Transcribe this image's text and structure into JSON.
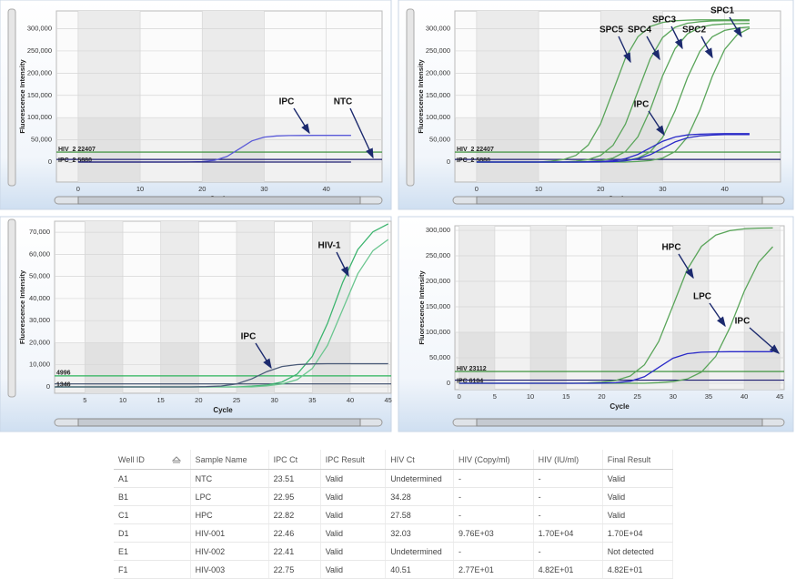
{
  "chart_data": [
    {
      "type": "line",
      "xlabel": "Cycle",
      "ylabel": "Fluorescence Intensity",
      "x": [
        0,
        2,
        4,
        6,
        8,
        10,
        12,
        14,
        16,
        18,
        20,
        22,
        24,
        26,
        28,
        30,
        32,
        34,
        36,
        38,
        40,
        42,
        44
      ],
      "xlim": [
        -3.5,
        49
      ],
      "ylim": [
        -45000,
        340000
      ],
      "xticks": [
        0,
        10,
        20,
        30,
        40
      ],
      "yticks": [
        0,
        {
          "value": 50000,
          "label": "50,000"
        },
        {
          "value": 100000,
          "label": "100,000"
        },
        {
          "value": 150000,
          "label": "150,000"
        },
        {
          "value": 200000,
          "label": "200,000"
        },
        {
          "value": 250000,
          "label": "250,000"
        },
        {
          "value": 300000,
          "label": "300,000"
        }
      ],
      "series": [
        {
          "color": "#5a5ad8",
          "values": [
            0,
            0,
            0,
            0,
            0,
            0,
            0,
            0,
            0,
            300,
            1100,
            3900,
            12500,
            30000,
            47500,
            56100,
            58900,
            59600,
            59900,
            60000,
            60000,
            60000,
            60000
          ]
        },
        {
          "color": "#1c1c70",
          "values": [
            0,
            0,
            0,
            0,
            0,
            0,
            0,
            0,
            0,
            0,
            0,
            0,
            0,
            0,
            0,
            0,
            0,
            0,
            0,
            0,
            0,
            0,
            0
          ]
        }
      ],
      "thresholds": [
        {
          "label": "HIV_2 22407",
          "value": 22407,
          "color": "#2c8a2c"
        },
        {
          "label": "IPC_2 5880",
          "value": 5880,
          "color": "#1c1c70"
        }
      ],
      "annotations": [
        {
          "text": "IPC"
        },
        {
          "text": "NTC"
        }
      ]
    },
    {
      "type": "line",
      "xlabel": "Cycle",
      "ylabel": "Fluorescence Intensity",
      "x": [
        0,
        2,
        4,
        6,
        8,
        10,
        12,
        14,
        16,
        18,
        20,
        22,
        24,
        26,
        28,
        30,
        32,
        34,
        36,
        38,
        40,
        42,
        44
      ],
      "xlim": [
        -3.5,
        49
      ],
      "ylim": [
        -45000,
        340000
      ],
      "xticks": [
        0,
        10,
        20,
        30,
        40
      ],
      "yticks": [
        0,
        {
          "value": 50000,
          "label": "50,000"
        },
        {
          "value": 100000,
          "label": "100,000"
        },
        {
          "value": 150000,
          "label": "150,000"
        },
        {
          "value": 200000,
          "label": "200,000"
        },
        {
          "value": 250000,
          "label": "250,000"
        },
        {
          "value": 300000,
          "label": "300,000"
        }
      ],
      "series": [
        {
          "color": "#5aa55a",
          "values": [
            0,
            0,
            0,
            0,
            0,
            0,
            2200,
            5800,
            15000,
            38100,
            86100,
            160000,
            233900,
            281900,
            305000,
            314200,
            317800,
            319400,
            320000,
            320000,
            320000,
            320000,
            320000
          ]
        },
        {
          "color": "#5aa55a",
          "values": [
            0,
            0,
            0,
            0,
            0,
            0,
            0,
            0,
            2200,
            5700,
            14900,
            37800,
            85500,
            159000,
            232500,
            280200,
            303100,
            312300,
            315800,
            317400,
            318000,
            318000,
            318000
          ]
        },
        {
          "color": "#5aa55a",
          "values": [
            0,
            0,
            0,
            0,
            0,
            0,
            0,
            0,
            0,
            1200,
            3400,
            9000,
            23700,
            56800,
            117900,
            194100,
            255200,
            288300,
            303000,
            308600,
            310800,
            311400,
            312000
          ]
        },
        {
          "color": "#5aa55a",
          "values": [
            0,
            0,
            0,
            0,
            0,
            0,
            0,
            0,
            0,
            0,
            0,
            1200,
            3400,
            8800,
            23200,
            55500,
            115300,
            189700,
            249500,
            281800,
            296200,
            301600,
            303800
          ]
        },
        {
          "color": "#5aa55a",
          "values": [
            0,
            0,
            0,
            0,
            0,
            0,
            0,
            0,
            0,
            0,
            0,
            0,
            0,
            1200,
            3400,
            9000,
            23600,
            56400,
            117200,
            192800,
            253600,
            286400,
            301000
          ]
        },
        {
          "color": "#2a2ac8",
          "values": [
            0,
            0,
            0,
            0,
            0,
            0,
            0,
            0,
            0,
            400,
            1200,
            3000,
            7600,
            17200,
            32000,
            46800,
            56400,
            61000,
            62800,
            63600,
            63900,
            64000,
            64000
          ]
        },
        {
          "color": "#2a2ac8",
          "values": [
            0,
            0,
            0,
            0,
            0,
            0,
            0,
            0,
            0,
            0,
            400,
            1100,
            2900,
            7400,
            16700,
            31000,
            45300,
            54600,
            59100,
            60900,
            61600,
            61900,
            62000
          ]
        }
      ],
      "thresholds": [
        {
          "label": "HIV_2 22407",
          "value": 22407,
          "color": "#2c8a2c"
        },
        {
          "label": "IPC_2 5880",
          "value": 5880,
          "color": "#1c1c70"
        }
      ],
      "annotations": [
        {
          "text": "SPC5"
        },
        {
          "text": "SPC4"
        },
        {
          "text": "SPC3"
        },
        {
          "text": "SPC2"
        },
        {
          "text": "SPC1"
        },
        {
          "text": "IPC"
        }
      ]
    },
    {
      "type": "line",
      "xlabel": "Cycle",
      "ylabel": "Fluorescence Intensity",
      "x": [
        1,
        3,
        5,
        7,
        9,
        11,
        13,
        15,
        17,
        19,
        21,
        23,
        25,
        27,
        29,
        31,
        33,
        35,
        37,
        39,
        41,
        43,
        45
      ],
      "xlim": [
        1,
        45.4
      ],
      "ylim": [
        -2900,
        75000
      ],
      "xticks": [
        5,
        10,
        15,
        20,
        25,
        30,
        35,
        40,
        45
      ],
      "yticks": [
        0,
        {
          "value": 10000,
          "label": "10,000"
        },
        {
          "value": 20000,
          "label": "20,000"
        },
        {
          "value": 30000,
          "label": "30,000"
        },
        {
          "value": 40000,
          "label": "40,000"
        },
        {
          "value": 50000,
          "label": "50,000"
        },
        {
          "value": 60000,
          "label": "60,000"
        },
        {
          "value": 70000,
          "label": "70,000"
        }
      ],
      "series": [
        {
          "color": "#3cb46e",
          "values": [
            0,
            0,
            0,
            0,
            0,
            0,
            0,
            0,
            0,
            0,
            0,
            0,
            0,
            300,
            800,
            2200,
            5800,
            13800,
            28700,
            47300,
            62200,
            70200,
            73800
          ]
        },
        {
          "color": "#6cc690",
          "values": [
            0,
            0,
            0,
            0,
            0,
            0,
            0,
            0,
            0,
            0,
            0,
            0,
            0,
            0,
            500,
            1300,
            3300,
            8300,
            18800,
            35000,
            51200,
            61700,
            66700
          ]
        },
        {
          "color": "#4a5a78",
          "values": [
            0,
            0,
            0,
            0,
            0,
            0,
            0,
            0,
            0,
            0,
            100,
            400,
            1300,
            3600,
            6900,
            9200,
            10100,
            10400,
            10500,
            10500,
            10500,
            10500,
            10500
          ]
        }
      ],
      "thresholds": [
        {
          "label": "4996",
          "value": 4996,
          "color": "#2cb45a"
        },
        {
          "label": "1346",
          "value": 1346,
          "color": "#3a4a6a"
        }
      ],
      "annotations": [
        {
          "text": "HIV-1"
        },
        {
          "text": "IPC"
        }
      ]
    },
    {
      "type": "line",
      "xlabel": "Cycle",
      "ylabel": "Fluorescence Intensity",
      "x": [
        0,
        2,
        4,
        6,
        8,
        10,
        12,
        14,
        16,
        18,
        20,
        22,
        24,
        26,
        28,
        30,
        32,
        34,
        36,
        38,
        40,
        42,
        44
      ],
      "xlim": [
        -0.6,
        45.6
      ],
      "ylim": [
        -12500,
        309000
      ],
      "xticks": [
        0,
        5,
        10,
        15,
        20,
        25,
        30,
        35,
        40,
        45
      ],
      "yticks": [
        0,
        {
          "value": 50000,
          "label": "50,000"
        },
        {
          "value": 100000,
          "label": "100,000"
        },
        {
          "value": 150000,
          "label": "150,000"
        },
        {
          "value": 200000,
          "label": "200,000"
        },
        {
          "value": 250000,
          "label": "250,000"
        },
        {
          "value": 300000,
          "label": "300,000"
        }
      ],
      "series": [
        {
          "color": "#5aa55a",
          "values": [
            0,
            0,
            0,
            0,
            0,
            0,
            0,
            0,
            0,
            600,
            2100,
            5500,
            14300,
            36300,
            82000,
            152500,
            223000,
            268700,
            290700,
            299500,
            302900,
            304400,
            304700
          ]
        },
        {
          "color": "#5aa55a",
          "values": [
            0,
            0,
            0,
            0,
            0,
            0,
            0,
            0,
            0,
            0,
            0,
            0,
            0,
            0,
            1200,
            3200,
            8400,
            22000,
            52800,
            109600,
            180400,
            237200,
            268000
          ]
        },
        {
          "color": "#2a2ac8",
          "values": [
            0,
            0,
            0,
            0,
            0,
            0,
            0,
            0,
            0,
            0,
            300,
            1100,
            4000,
            12900,
            31000,
            49100,
            58000,
            60900,
            61700,
            61900,
            62000,
            62000,
            62000
          ]
        }
      ],
      "thresholds": [
        {
          "label": "HIV 23112",
          "value": 23112,
          "color": "#2c8a2c"
        },
        {
          "label": "IPC 6104",
          "value": 6104,
          "color": "#1c1c70"
        }
      ],
      "annotations": [
        {
          "text": "HPC"
        },
        {
          "text": "LPC"
        },
        {
          "text": "IPC"
        }
      ]
    }
  ],
  "table": {
    "columns": [
      "Well ID",
      "Sample Name",
      "IPC Ct",
      "IPC Result",
      "HIV Ct",
      "HIV (Copy/ml)",
      "HIV (IU/ml)",
      "Final Result"
    ],
    "rows": [
      [
        "A1",
        "NTC",
        "23.51",
        "Valid",
        "Undetermined",
        "-",
        "-",
        "Valid"
      ],
      [
        "B1",
        "LPC",
        "22.95",
        "Valid",
        "34.28",
        "-",
        "-",
        "Valid"
      ],
      [
        "C1",
        "HPC",
        "22.82",
        "Valid",
        "27.58",
        "-",
        "-",
        "Valid"
      ],
      [
        "D1",
        "HIV-001",
        "22.46",
        "Valid",
        "32.03",
        "9.76E+03",
        "1.70E+04",
        "1.70E+04"
      ],
      [
        "E1",
        "HIV-002",
        "22.41",
        "Valid",
        "Undetermined",
        "-",
        "-",
        "Not detected"
      ],
      [
        "F1",
        "HIV-003",
        "22.75",
        "Valid",
        "40.51",
        "2.77E+01",
        "4.82E+01",
        "4.82E+01"
      ]
    ]
  }
}
